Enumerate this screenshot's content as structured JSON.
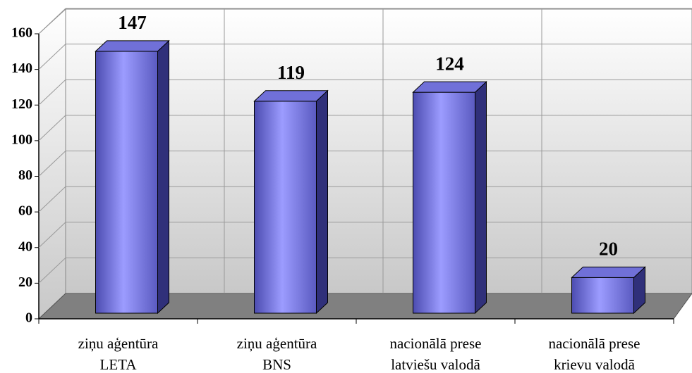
{
  "chart_data": {
    "type": "bar3d",
    "categories": [
      [
        "ziņu aģentūra",
        "LETA"
      ],
      [
        "ziņu aģentūra",
        "BNS"
      ],
      [
        "nacionālā prese",
        "latviešu valodā"
      ],
      [
        "nacionālā prese",
        "krievu valodā"
      ]
    ],
    "values": [
      147,
      119,
      124,
      20
    ],
    "color": "#8888f0",
    "ylim": [
      0,
      160
    ],
    "yticks": [
      0,
      20,
      40,
      60,
      80,
      100,
      120,
      140,
      160
    ],
    "grid": true
  }
}
